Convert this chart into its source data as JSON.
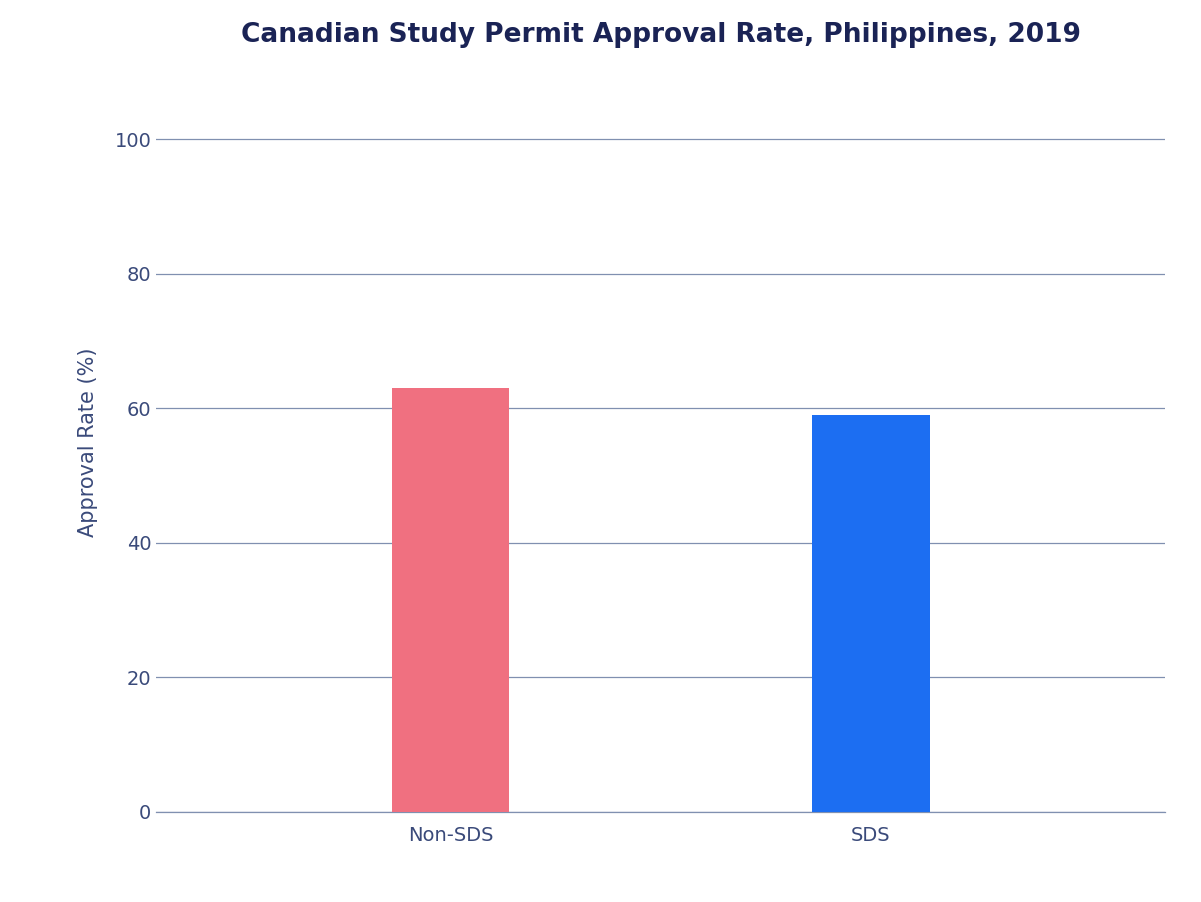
{
  "title": "Canadian Study Permit Approval Rate, Philippines, 2019",
  "categories": [
    "Non-SDS",
    "SDS"
  ],
  "values": [
    63,
    59
  ],
  "bar_colors": [
    "#F07080",
    "#1C6EF2"
  ],
  "ylabel": "Approval Rate (%)",
  "ylim": [
    0,
    110
  ],
  "yticks": [
    0,
    20,
    40,
    60,
    80,
    100
  ],
  "xlim": [
    -0.7,
    1.7
  ],
  "title_fontsize": 19,
  "label_fontsize": 15,
  "tick_fontsize": 14,
  "title_color": "#1a2355",
  "axis_color": "#3a4a7a",
  "grid_color": "#8090b0",
  "background_color": "#ffffff",
  "bar_width": 0.28
}
